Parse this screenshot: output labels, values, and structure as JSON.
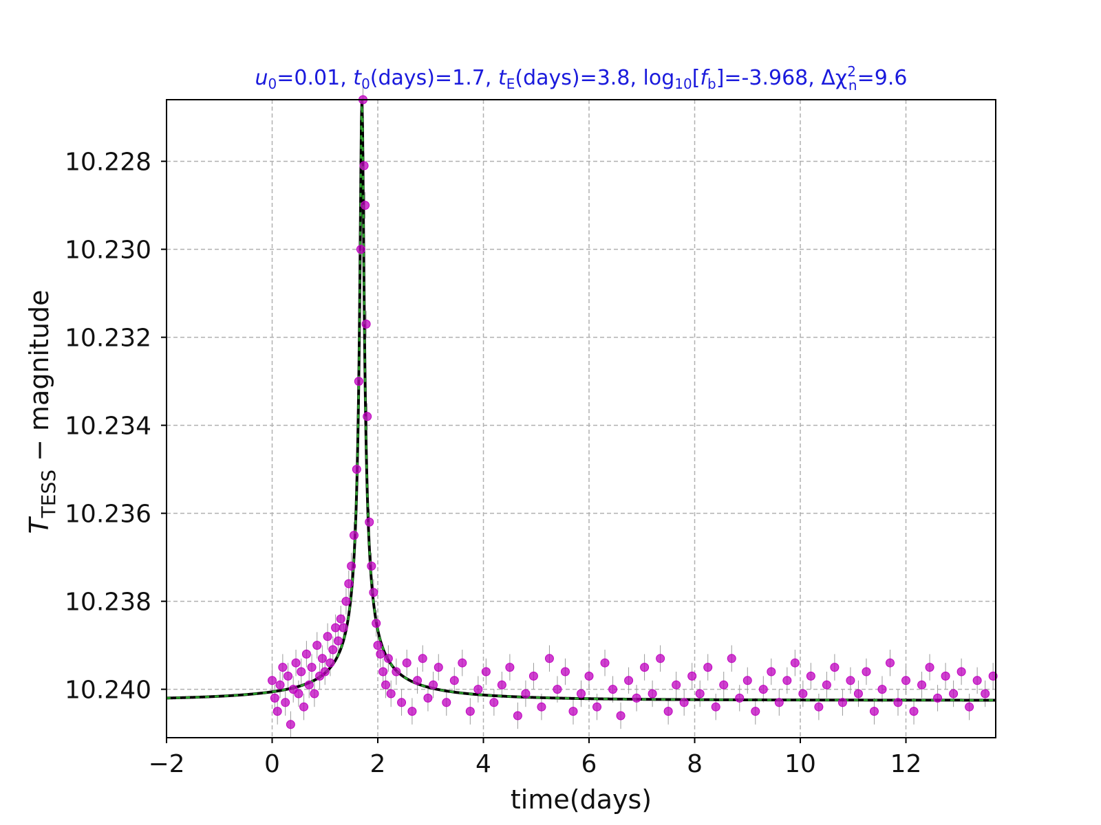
{
  "chart_data": {
    "type": "scatter",
    "title_parts": {
      "u0": "0.01",
      "t0": "1.7",
      "tE": "3.8",
      "log_fb": "-3.968",
      "dchi2": "9.6"
    },
    "xlabel": "time(days)",
    "ylabel_main": "T",
    "ylabel_sub": "TESS",
    "ylabel_rest": " − magnitude",
    "xlim": [
      -2.0,
      13.7
    ],
    "ylim": [
      10.2411,
      10.2266
    ],
    "y_inverted": true,
    "x_ticks": [
      -2,
      0,
      2,
      4,
      6,
      8,
      10,
      12
    ],
    "x_tick_labels": [
      "−2",
      "0",
      "2",
      "4",
      "6",
      "8",
      "10",
      "12"
    ],
    "y_ticks": [
      10.228,
      10.23,
      10.232,
      10.234,
      10.236,
      10.238,
      10.24
    ],
    "y_tick_labels": [
      "10.228",
      "10.230",
      "10.232",
      "10.234",
      "10.236",
      "10.238",
      "10.240"
    ],
    "grid": true,
    "model": {
      "name": "model",
      "color": "#000000",
      "baseline_mag": 10.2402,
      "peak_mag": 10.2266,
      "t0": 1.7,
      "tE": 3.8,
      "u0": 0.01
    },
    "model_overlay": {
      "color": "#2ca02c"
    },
    "series": [
      {
        "name": "data",
        "color": "#bf00bf",
        "errorbar_color": "#999999",
        "points": [
          [
            0.0,
            10.2398
          ],
          [
            0.05,
            10.2402
          ],
          [
            0.1,
            10.2405
          ],
          [
            0.15,
            10.2399
          ],
          [
            0.2,
            10.2395
          ],
          [
            0.25,
            10.2403
          ],
          [
            0.3,
            10.2397
          ],
          [
            0.35,
            10.2408
          ],
          [
            0.4,
            10.24
          ],
          [
            0.45,
            10.2394
          ],
          [
            0.5,
            10.2401
          ],
          [
            0.55,
            10.2396
          ],
          [
            0.6,
            10.2404
          ],
          [
            0.65,
            10.2392
          ],
          [
            0.7,
            10.2399
          ],
          [
            0.75,
            10.2395
          ],
          [
            0.8,
            10.2401
          ],
          [
            0.85,
            10.239
          ],
          [
            0.9,
            10.2397
          ],
          [
            0.95,
            10.2393
          ],
          [
            1.0,
            10.2396
          ],
          [
            1.05,
            10.2388
          ],
          [
            1.1,
            10.2394
          ],
          [
            1.15,
            10.2391
          ],
          [
            1.2,
            10.2386
          ],
          [
            1.25,
            10.2389
          ],
          [
            1.3,
            10.2384
          ],
          [
            1.35,
            10.2386
          ],
          [
            1.4,
            10.238
          ],
          [
            1.45,
            10.2376
          ],
          [
            1.5,
            10.2372
          ],
          [
            1.55,
            10.2365
          ],
          [
            1.6,
            10.235
          ],
          [
            1.64,
            10.233
          ],
          [
            1.68,
            10.23
          ],
          [
            1.72,
            10.2266
          ],
          [
            1.74,
            10.2281
          ],
          [
            1.76,
            10.229
          ],
          [
            1.78,
            10.2317
          ],
          [
            1.8,
            10.2338
          ],
          [
            1.84,
            10.2362
          ],
          [
            1.88,
            10.2372
          ],
          [
            1.92,
            10.2378
          ],
          [
            1.97,
            10.2385
          ],
          [
            2.0,
            10.239
          ],
          [
            2.05,
            10.2392
          ],
          [
            2.1,
            10.2396
          ],
          [
            2.15,
            10.2399
          ],
          [
            2.2,
            10.2393
          ],
          [
            2.25,
            10.2401
          ],
          [
            2.35,
            10.2396
          ],
          [
            2.45,
            10.2403
          ],
          [
            2.55,
            10.2394
          ],
          [
            2.65,
            10.2405
          ],
          [
            2.75,
            10.2398
          ],
          [
            2.85,
            10.2393
          ],
          [
            2.95,
            10.2402
          ],
          [
            3.05,
            10.2399
          ],
          [
            3.15,
            10.2395
          ],
          [
            3.3,
            10.2403
          ],
          [
            3.45,
            10.2398
          ],
          [
            3.6,
            10.2394
          ],
          [
            3.75,
            10.2405
          ],
          [
            3.9,
            10.24
          ],
          [
            4.05,
            10.2396
          ],
          [
            4.2,
            10.2403
          ],
          [
            4.35,
            10.2399
          ],
          [
            4.5,
            10.2395
          ],
          [
            4.65,
            10.2406
          ],
          [
            4.8,
            10.2401
          ],
          [
            4.95,
            10.2397
          ],
          [
            5.1,
            10.2404
          ],
          [
            5.25,
            10.2393
          ],
          [
            5.4,
            10.24
          ],
          [
            5.55,
            10.2396
          ],
          [
            5.7,
            10.2405
          ],
          [
            5.85,
            10.2401
          ],
          [
            6.0,
            10.2397
          ],
          [
            6.15,
            10.2404
          ],
          [
            6.3,
            10.2394
          ],
          [
            6.45,
            10.24
          ],
          [
            6.6,
            10.2406
          ],
          [
            6.75,
            10.2398
          ],
          [
            6.9,
            10.2402
          ],
          [
            7.05,
            10.2395
          ],
          [
            7.2,
            10.2401
          ],
          [
            7.35,
            10.2393
          ],
          [
            7.5,
            10.2405
          ],
          [
            7.65,
            10.2399
          ],
          [
            7.8,
            10.2403
          ],
          [
            7.95,
            10.2397
          ],
          [
            8.1,
            10.2401
          ],
          [
            8.25,
            10.2395
          ],
          [
            8.4,
            10.2404
          ],
          [
            8.55,
            10.2399
          ],
          [
            8.7,
            10.2393
          ],
          [
            8.85,
            10.2402
          ],
          [
            9.0,
            10.2398
          ],
          [
            9.15,
            10.2405
          ],
          [
            9.3,
            10.24
          ],
          [
            9.45,
            10.2396
          ],
          [
            9.6,
            10.2403
          ],
          [
            9.75,
            10.2398
          ],
          [
            9.9,
            10.2394
          ],
          [
            10.05,
            10.2401
          ],
          [
            10.2,
            10.2397
          ],
          [
            10.35,
            10.2404
          ],
          [
            10.5,
            10.2399
          ],
          [
            10.65,
            10.2395
          ],
          [
            10.8,
            10.2403
          ],
          [
            10.95,
            10.2398
          ],
          [
            11.1,
            10.2401
          ],
          [
            11.25,
            10.2396
          ],
          [
            11.4,
            10.2405
          ],
          [
            11.55,
            10.24
          ],
          [
            11.7,
            10.2394
          ],
          [
            11.85,
            10.2403
          ],
          [
            12.0,
            10.2398
          ],
          [
            12.15,
            10.2405
          ],
          [
            12.3,
            10.2399
          ],
          [
            12.45,
            10.2395
          ],
          [
            12.6,
            10.2402
          ],
          [
            12.75,
            10.2397
          ],
          [
            12.9,
            10.2401
          ],
          [
            13.05,
            10.2396
          ],
          [
            13.2,
            10.2404
          ],
          [
            13.35,
            10.2398
          ],
          [
            13.5,
            10.2401
          ],
          [
            13.65,
            10.2397
          ]
        ],
        "errorbar_half": 0.0003
      }
    ]
  }
}
